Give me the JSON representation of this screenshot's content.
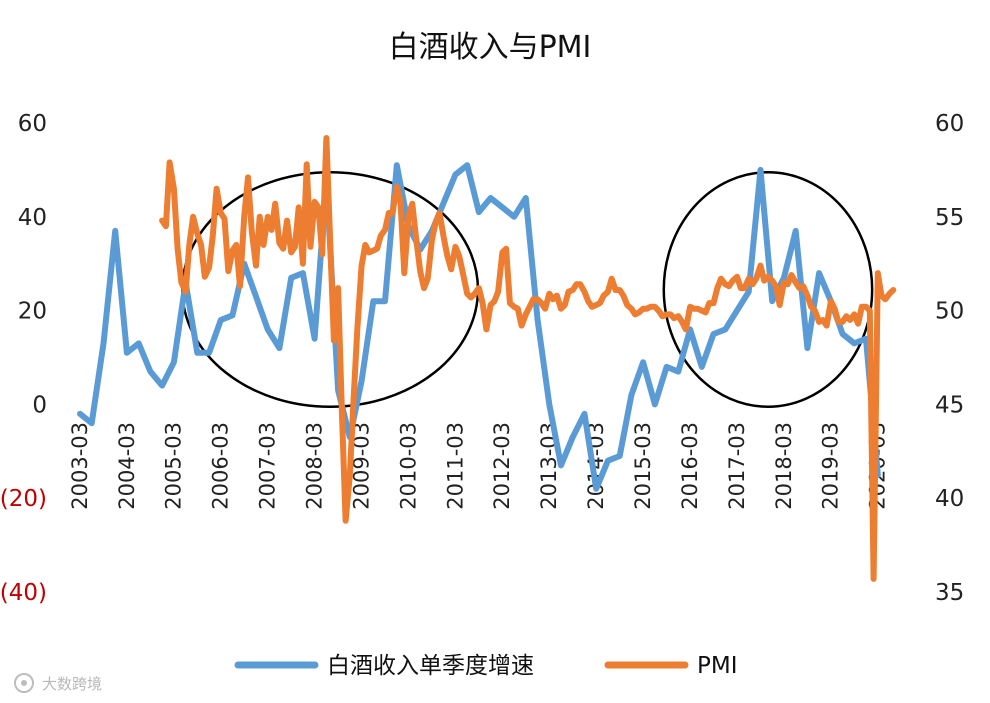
{
  "chart_data": {
    "type": "line",
    "title": "白酒收入与PMI",
    "left_axis": {
      "ylim": [
        -40,
        60
      ],
      "ticks": [
        60,
        40,
        20,
        0,
        -20,
        -40
      ],
      "tick_labels": [
        "60",
        "40",
        "20",
        "0",
        "(20)",
        "(40)"
      ],
      "negative_tick_color": "#c00000"
    },
    "right_axis": {
      "ylim": [
        35,
        60
      ],
      "ticks": [
        60,
        55,
        50,
        45,
        40,
        35
      ],
      "tick_labels": [
        "60",
        "55",
        "50",
        "45",
        "40",
        "35"
      ]
    },
    "x_axis": {
      "min": 2003.17,
      "max": 2020.75,
      "tick_labels": [
        "2003-03",
        "2004-03",
        "2005-03",
        "2006-03",
        "2007-03",
        "2008-03",
        "2009-03",
        "2010-03",
        "2011-03",
        "2012-03",
        "2013-03",
        "2014-03",
        "2015-03",
        "2016-03",
        "2017-03",
        "2018-03",
        "2019-03",
        "2020-03"
      ]
    },
    "grid": false,
    "legend": {
      "position": "bottom"
    },
    "series": [
      {
        "name": "白酒收入单季度增速",
        "color": "#5b9bd5",
        "axis": "left",
        "points": [
          [
            2003.17,
            -2
          ],
          [
            2003.42,
            -4
          ],
          [
            2003.67,
            13
          ],
          [
            2003.92,
            37
          ],
          [
            2004.17,
            11
          ],
          [
            2004.42,
            13
          ],
          [
            2004.67,
            7
          ],
          [
            2004.92,
            4
          ],
          [
            2005.17,
            9
          ],
          [
            2005.42,
            26
          ],
          [
            2005.67,
            11
          ],
          [
            2005.92,
            11
          ],
          [
            2006.17,
            18
          ],
          [
            2006.42,
            19
          ],
          [
            2006.67,
            30
          ],
          [
            2006.92,
            23
          ],
          [
            2007.17,
            16
          ],
          [
            2007.42,
            12
          ],
          [
            2007.67,
            27
          ],
          [
            2007.92,
            28
          ],
          [
            2008.17,
            14
          ],
          [
            2008.42,
            48
          ],
          [
            2008.67,
            3
          ],
          [
            2008.92,
            -7
          ],
          [
            2009.17,
            5
          ],
          [
            2009.42,
            22
          ],
          [
            2009.67,
            22
          ],
          [
            2009.92,
            51
          ],
          [
            2010.17,
            38
          ],
          [
            2010.42,
            33
          ],
          [
            2010.67,
            37
          ],
          [
            2010.92,
            43
          ],
          [
            2011.17,
            49
          ],
          [
            2011.42,
            51
          ],
          [
            2011.67,
            41
          ],
          [
            2011.92,
            44
          ],
          [
            2012.17,
            42
          ],
          [
            2012.42,
            40
          ],
          [
            2012.67,
            44
          ],
          [
            2012.92,
            18
          ],
          [
            2013.17,
            0
          ],
          [
            2013.42,
            -13
          ],
          [
            2013.67,
            -7
          ],
          [
            2013.92,
            -2
          ],
          [
            2014.17,
            -18
          ],
          [
            2014.42,
            -12
          ],
          [
            2014.67,
            -11
          ],
          [
            2014.92,
            2
          ],
          [
            2015.17,
            9
          ],
          [
            2015.42,
            0
          ],
          [
            2015.67,
            8
          ],
          [
            2015.92,
            7
          ],
          [
            2016.17,
            16
          ],
          [
            2016.42,
            8
          ],
          [
            2016.67,
            15
          ],
          [
            2016.92,
            16
          ],
          [
            2017.17,
            20
          ],
          [
            2017.42,
            24
          ],
          [
            2017.67,
            50
          ],
          [
            2017.92,
            22
          ],
          [
            2018.17,
            27
          ],
          [
            2018.42,
            37
          ],
          [
            2018.67,
            12
          ],
          [
            2018.92,
            28
          ],
          [
            2019.17,
            22
          ],
          [
            2019.42,
            15
          ],
          [
            2019.67,
            13
          ],
          [
            2019.92,
            14
          ],
          [
            2020.17,
            -15
          ]
        ]
      },
      {
        "name": "PMI",
        "color": "#ed7d31",
        "axis": "right",
        "points": [
          [
            2004.92,
            54.8
          ],
          [
            2005.0,
            54.5
          ],
          [
            2005.08,
            57.9
          ],
          [
            2005.17,
            56.5
          ],
          [
            2005.25,
            53.3
          ],
          [
            2005.33,
            51.5
          ],
          [
            2005.42,
            51.0
          ],
          [
            2005.5,
            53.5
          ],
          [
            2005.58,
            55.0
          ],
          [
            2005.67,
            54.1
          ],
          [
            2005.75,
            53.5
          ],
          [
            2005.83,
            51.8
          ],
          [
            2005.92,
            52.3
          ],
          [
            2006.0,
            54.0
          ],
          [
            2006.08,
            56.5
          ],
          [
            2006.17,
            55.2
          ],
          [
            2006.25,
            54.9
          ],
          [
            2006.33,
            52.1
          ],
          [
            2006.42,
            53.2
          ],
          [
            2006.5,
            53.5
          ],
          [
            2006.58,
            51.3
          ],
          [
            2006.67,
            55.0
          ],
          [
            2006.75,
            57.1
          ],
          [
            2006.83,
            54.2
          ],
          [
            2006.92,
            52.4
          ],
          [
            2007.0,
            55.0
          ],
          [
            2007.08,
            53.5
          ],
          [
            2007.17,
            55.0
          ],
          [
            2007.25,
            54.3
          ],
          [
            2007.33,
            55.7
          ],
          [
            2007.42,
            53.6
          ],
          [
            2007.5,
            53.3
          ],
          [
            2007.58,
            54.8
          ],
          [
            2007.67,
            53.1
          ],
          [
            2007.75,
            53.4
          ],
          [
            2007.83,
            55.5
          ],
          [
            2007.92,
            52.5
          ],
          [
            2008.0,
            57.8
          ],
          [
            2008.08,
            53.4
          ],
          [
            2008.17,
            55.8
          ],
          [
            2008.25,
            55.5
          ],
          [
            2008.33,
            53.0
          ],
          [
            2008.42,
            59.2
          ],
          [
            2008.5,
            53.8
          ],
          [
            2008.58,
            48.4
          ],
          [
            2008.67,
            51.2
          ],
          [
            2008.75,
            44.6
          ],
          [
            2008.83,
            38.8
          ],
          [
            2008.92,
            41.2
          ],
          [
            2009.0,
            45.3
          ],
          [
            2009.08,
            49.0
          ],
          [
            2009.17,
            52.4
          ],
          [
            2009.25,
            53.5
          ],
          [
            2009.33,
            53.1
          ],
          [
            2009.42,
            53.2
          ],
          [
            2009.5,
            53.3
          ],
          [
            2009.58,
            54.0
          ],
          [
            2009.67,
            54.3
          ],
          [
            2009.75,
            55.2
          ],
          [
            2009.83,
            55.2
          ],
          [
            2009.92,
            56.6
          ],
          [
            2010.0,
            55.8
          ],
          [
            2010.08,
            52.0
          ],
          [
            2010.17,
            55.1
          ],
          [
            2010.25,
            55.7
          ],
          [
            2010.33,
            53.9
          ],
          [
            2010.42,
            52.1
          ],
          [
            2010.5,
            51.2
          ],
          [
            2010.58,
            51.7
          ],
          [
            2010.67,
            53.8
          ],
          [
            2010.75,
            54.7
          ],
          [
            2010.83,
            55.2
          ],
          [
            2010.92,
            53.9
          ],
          [
            2011.0,
            52.9
          ],
          [
            2011.08,
            52.2
          ],
          [
            2011.17,
            53.4
          ],
          [
            2011.25,
            52.9
          ],
          [
            2011.33,
            52.0
          ],
          [
            2011.42,
            50.9
          ],
          [
            2011.5,
            50.7
          ],
          [
            2011.58,
            50.9
          ],
          [
            2011.67,
            51.2
          ],
          [
            2011.75,
            50.4
          ],
          [
            2011.83,
            49.0
          ],
          [
            2011.92,
            50.3
          ],
          [
            2012.0,
            50.5
          ],
          [
            2012.08,
            51.0
          ],
          [
            2012.17,
            53.1
          ],
          [
            2012.25,
            53.3
          ],
          [
            2012.33,
            50.4
          ],
          [
            2012.42,
            50.2
          ],
          [
            2012.5,
            50.1
          ],
          [
            2012.58,
            49.2
          ],
          [
            2012.67,
            49.8
          ],
          [
            2012.75,
            50.2
          ],
          [
            2012.83,
            50.6
          ],
          [
            2012.92,
            50.6
          ],
          [
            2013.0,
            50.4
          ],
          [
            2013.08,
            50.1
          ],
          [
            2013.17,
            50.9
          ],
          [
            2013.25,
            50.6
          ],
          [
            2013.33,
            50.8
          ],
          [
            2013.42,
            50.1
          ],
          [
            2013.5,
            50.3
          ],
          [
            2013.58,
            51.0
          ],
          [
            2013.67,
            51.1
          ],
          [
            2013.75,
            51.4
          ],
          [
            2013.83,
            51.4
          ],
          [
            2013.92,
            51.0
          ],
          [
            2014.0,
            50.5
          ],
          [
            2014.08,
            50.2
          ],
          [
            2014.17,
            50.3
          ],
          [
            2014.25,
            50.4
          ],
          [
            2014.33,
            50.8
          ],
          [
            2014.42,
            51.0
          ],
          [
            2014.5,
            51.7
          ],
          [
            2014.58,
            51.1
          ],
          [
            2014.67,
            51.1
          ],
          [
            2014.75,
            50.8
          ],
          [
            2014.83,
            50.3
          ],
          [
            2014.92,
            50.1
          ],
          [
            2015.0,
            49.8
          ],
          [
            2015.08,
            49.9
          ],
          [
            2015.17,
            50.1
          ],
          [
            2015.25,
            50.1
          ],
          [
            2015.33,
            50.2
          ],
          [
            2015.42,
            50.2
          ],
          [
            2015.5,
            50.0
          ],
          [
            2015.58,
            49.7
          ],
          [
            2015.67,
            49.8
          ],
          [
            2015.75,
            49.8
          ],
          [
            2015.83,
            49.6
          ],
          [
            2015.92,
            49.7
          ],
          [
            2016.0,
            49.4
          ],
          [
            2016.08,
            49.0
          ],
          [
            2016.17,
            50.2
          ],
          [
            2016.25,
            50.1
          ],
          [
            2016.33,
            50.1
          ],
          [
            2016.42,
            50.0
          ],
          [
            2016.5,
            49.9
          ],
          [
            2016.58,
            50.4
          ],
          [
            2016.67,
            50.4
          ],
          [
            2016.75,
            51.2
          ],
          [
            2016.83,
            51.7
          ],
          [
            2016.92,
            51.4
          ],
          [
            2017.0,
            51.3
          ],
          [
            2017.08,
            51.6
          ],
          [
            2017.17,
            51.8
          ],
          [
            2017.25,
            51.2
          ],
          [
            2017.33,
            51.2
          ],
          [
            2017.42,
            51.7
          ],
          [
            2017.5,
            51.4
          ],
          [
            2017.58,
            51.7
          ],
          [
            2017.67,
            52.4
          ],
          [
            2017.75,
            51.6
          ],
          [
            2017.83,
            51.8
          ],
          [
            2017.92,
            51.6
          ],
          [
            2018.0,
            51.3
          ],
          [
            2018.08,
            50.3
          ],
          [
            2018.17,
            51.5
          ],
          [
            2018.25,
            51.4
          ],
          [
            2018.33,
            51.9
          ],
          [
            2018.42,
            51.5
          ],
          [
            2018.5,
            51.2
          ],
          [
            2018.58,
            51.3
          ],
          [
            2018.67,
            50.8
          ],
          [
            2018.75,
            50.2
          ],
          [
            2018.83,
            50.0
          ],
          [
            2018.92,
            49.4
          ],
          [
            2019.0,
            49.5
          ],
          [
            2019.08,
            49.2
          ],
          [
            2019.17,
            50.5
          ],
          [
            2019.25,
            50.1
          ],
          [
            2019.33,
            49.4
          ],
          [
            2019.42,
            49.4
          ],
          [
            2019.5,
            49.7
          ],
          [
            2019.58,
            49.5
          ],
          [
            2019.67,
            49.8
          ],
          [
            2019.75,
            49.3
          ],
          [
            2019.83,
            50.2
          ],
          [
            2019.92,
            50.2
          ],
          [
            2020.0,
            50.0
          ],
          [
            2020.08,
            35.7
          ],
          [
            2020.17,
            52.0
          ],
          [
            2020.25,
            50.8
          ],
          [
            2020.33,
            50.6
          ],
          [
            2020.42,
            50.9
          ],
          [
            2020.5,
            51.1
          ]
        ]
      }
    ],
    "annotations": [
      {
        "type": "ellipse",
        "x_center": 2008.5,
        "y_center_left": 24.5,
        "x_radius": 3.15,
        "y_radius_left": 25
      },
      {
        "type": "ellipse",
        "x_center": 2017.83,
        "y_center_left": 24.5,
        "x_radius": 2.22,
        "y_radius_left": 25
      }
    ]
  },
  "watermark": "大数跨境"
}
